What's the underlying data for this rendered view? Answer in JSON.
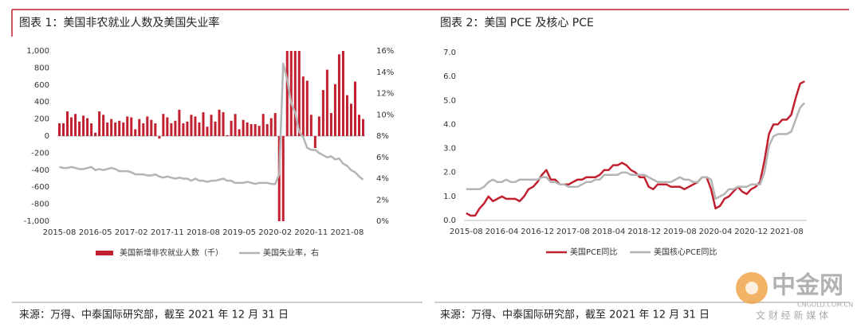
{
  "chart_data": [
    {
      "type": "bar",
      "title": "图表 1：美国非农就业人数及美国失业率",
      "categories": [
        "2015-08",
        null,
        null,
        null,
        null,
        null,
        null,
        null,
        null,
        "2016-05",
        null,
        null,
        null,
        null,
        null,
        null,
        null,
        null,
        "2017-02",
        null,
        null,
        null,
        null,
        null,
        null,
        null,
        null,
        "2017-11",
        null,
        null,
        null,
        null,
        null,
        null,
        null,
        null,
        "2018-08",
        null,
        null,
        null,
        null,
        null,
        null,
        null,
        null,
        "2019-05",
        null,
        null,
        null,
        null,
        null,
        null,
        null,
        null,
        "2020-02",
        null,
        null,
        null,
        null,
        null,
        null,
        null,
        null,
        "2020-11",
        null,
        null,
        null,
        null,
        null,
        null,
        null,
        null,
        "2021-08",
        null,
        null,
        null,
        null
      ],
      "series": [
        {
          "name": "美国新增非农就业人数（千）",
          "type": "bar",
          "color": "#c0202f",
          "values": [
            150,
            150,
            290,
            220,
            260,
            170,
            240,
            210,
            150,
            40,
            290,
            250,
            160,
            200,
            160,
            180,
            160,
            230,
            220,
            80,
            200,
            150,
            230,
            190,
            150,
            -30,
            260,
            220,
            150,
            180,
            310,
            150,
            170,
            250,
            230,
            160,
            280,
            110,
            250,
            170,
            310,
            280,
            10,
            180,
            260,
            80,
            190,
            160,
            140,
            140,
            120,
            260,
            140,
            210,
            270,
            -1000,
            -1000,
            1000,
            1000,
            1000,
            1000,
            700,
            650,
            250,
            -140,
            230,
            540,
            780,
            270,
            610,
            960,
            1000,
            480,
            380,
            640,
            250,
            200
          ]
        },
        {
          "name": "美国失业率，右",
          "type": "line",
          "axis": "y2",
          "color": "#b4b4b4",
          "values": [
            5.1,
            5.0,
            5.0,
            5.1,
            5.0,
            4.9,
            4.9,
            5.0,
            5.1,
            4.8,
            4.9,
            4.8,
            4.9,
            5.0,
            4.9,
            4.7,
            4.7,
            4.7,
            4.6,
            4.4,
            4.4,
            4.4,
            4.3,
            4.3,
            4.4,
            4.2,
            4.1,
            4.2,
            4.1,
            4.0,
            4.1,
            4.0,
            4.0,
            3.8,
            4.0,
            3.8,
            3.8,
            3.7,
            3.8,
            3.8,
            3.9,
            4.0,
            3.8,
            3.8,
            3.6,
            3.6,
            3.6,
            3.7,
            3.6,
            3.5,
            3.6,
            3.6,
            3.6,
            3.5,
            3.5,
            4.4,
            14.8,
            13.3,
            11.1,
            10.2,
            8.4,
            7.9,
            6.9,
            6.7,
            6.7,
            6.4,
            6.2,
            6.0,
            6.1,
            5.8,
            5.9,
            5.4,
            5.2,
            4.8,
            4.6,
            4.2,
            3.9
          ]
        }
      ],
      "ylim": [
        -1000,
        1000
      ],
      "yticks": [
        {
          "value": 1000,
          "label": "1,000"
        },
        800,
        600,
        400,
        200,
        0,
        -200,
        -400,
        -600,
        -800,
        {
          "value": -1000,
          "label": "-1,000"
        }
      ],
      "y2lim": [
        0,
        16
      ],
      "y2ticks": [
        {
          "value": 16,
          "label": "16%"
        },
        {
          "value": 14,
          "label": "14%"
        },
        {
          "value": 12,
          "label": "12%"
        },
        {
          "value": 10,
          "label": "10%"
        },
        {
          "value": 8,
          "label": "8%"
        },
        {
          "value": 6,
          "label": "6%"
        },
        {
          "value": 4,
          "label": "4%"
        },
        {
          "value": 2,
          "label": "2%"
        },
        {
          "value": 0,
          "label": "0%"
        }
      ],
      "grid": false,
      "legend": "bottom"
    },
    {
      "type": "line",
      "title": "图表 2：美国 PCE 及核心 PCE",
      "categories": [
        "2015-08",
        null,
        null,
        null,
        null,
        null,
        null,
        null,
        "2016-04",
        null,
        null,
        null,
        null,
        null,
        null,
        null,
        "2016-12",
        null,
        null,
        null,
        null,
        null,
        null,
        null,
        "2017-08",
        null,
        null,
        null,
        null,
        null,
        null,
        null,
        "2018-04",
        null,
        null,
        null,
        null,
        null,
        null,
        null,
        "2018-12",
        null,
        null,
        null,
        null,
        null,
        null,
        null,
        "2019-08",
        null,
        null,
        null,
        null,
        null,
        null,
        null,
        "2020-04",
        null,
        null,
        null,
        null,
        null,
        null,
        null,
        "2020-12",
        null,
        null,
        null,
        null,
        null,
        null,
        null,
        "2021-08",
        null,
        null,
        null,
        null
      ],
      "series": [
        {
          "name": "美国PCE同比",
          "color": "#c0202f",
          "values": [
            0.3,
            0.2,
            0.2,
            0.5,
            0.7,
            1.0,
            0.8,
            0.9,
            1.0,
            0.9,
            0.9,
            0.9,
            0.8,
            1.0,
            1.3,
            1.4,
            1.6,
            1.9,
            2.1,
            1.7,
            1.7,
            1.5,
            1.5,
            1.5,
            1.6,
            1.7,
            1.7,
            1.8,
            1.8,
            1.8,
            1.9,
            2.1,
            2.1,
            2.3,
            2.3,
            2.4,
            2.3,
            2.1,
            2.0,
            1.8,
            1.8,
            1.4,
            1.3,
            1.5,
            1.5,
            1.5,
            1.4,
            1.4,
            1.4,
            1.3,
            1.4,
            1.5,
            1.6,
            1.8,
            1.8,
            1.3,
            0.5,
            0.6,
            0.9,
            1.0,
            1.2,
            1.4,
            1.2,
            1.1,
            1.3,
            1.4,
            1.6,
            2.5,
            3.6,
            4.0,
            4.0,
            4.2,
            4.2,
            4.4,
            5.1,
            5.7,
            5.8
          ]
        },
        {
          "name": "美国核心PCE同比",
          "color": "#b4b4b4",
          "values": [
            1.3,
            1.3,
            1.3,
            1.3,
            1.4,
            1.6,
            1.7,
            1.6,
            1.6,
            1.7,
            1.6,
            1.6,
            1.7,
            1.7,
            1.7,
            1.7,
            1.7,
            1.8,
            1.8,
            1.6,
            1.6,
            1.5,
            1.5,
            1.4,
            1.4,
            1.4,
            1.5,
            1.6,
            1.6,
            1.7,
            1.7,
            1.9,
            1.9,
            1.9,
            1.9,
            2.0,
            2.0,
            1.9,
            1.9,
            1.9,
            1.9,
            1.8,
            1.7,
            1.6,
            1.6,
            1.6,
            1.6,
            1.7,
            1.8,
            1.7,
            1.7,
            1.6,
            1.6,
            1.8,
            1.8,
            1.7,
            0.9,
            1.0,
            1.1,
            1.3,
            1.3,
            1.4,
            1.4,
            1.4,
            1.5,
            1.5,
            1.5,
            2.0,
            3.1,
            3.5,
            3.6,
            3.6,
            3.6,
            3.7,
            4.2,
            4.7,
            4.9
          ]
        }
      ],
      "ylim": [
        0,
        7
      ],
      "yticks": [
        {
          "value": 7,
          "label": "7.0"
        },
        {
          "value": 6,
          "label": "6.0"
        },
        {
          "value": 5,
          "label": "5.0"
        },
        {
          "value": 4,
          "label": "4.0"
        },
        {
          "value": 3,
          "label": "3.0"
        },
        {
          "value": 2,
          "label": "2.0"
        },
        {
          "value": 1,
          "label": "1.0"
        },
        {
          "value": 0,
          "label": "0.0"
        }
      ],
      "grid": false,
      "legend": "bottom"
    }
  ],
  "footer": [
    "来源：万得、中泰国际研究部，截至 2021 年 12 月 31 日",
    "来源：万得、中泰国际研究部，截至 2021 年 12 月 31 日"
  ],
  "watermark": {
    "name": "中金网",
    "domain": "CNGOLD.COM.CN",
    "slogan": "文 财 经 新 媒 体"
  }
}
